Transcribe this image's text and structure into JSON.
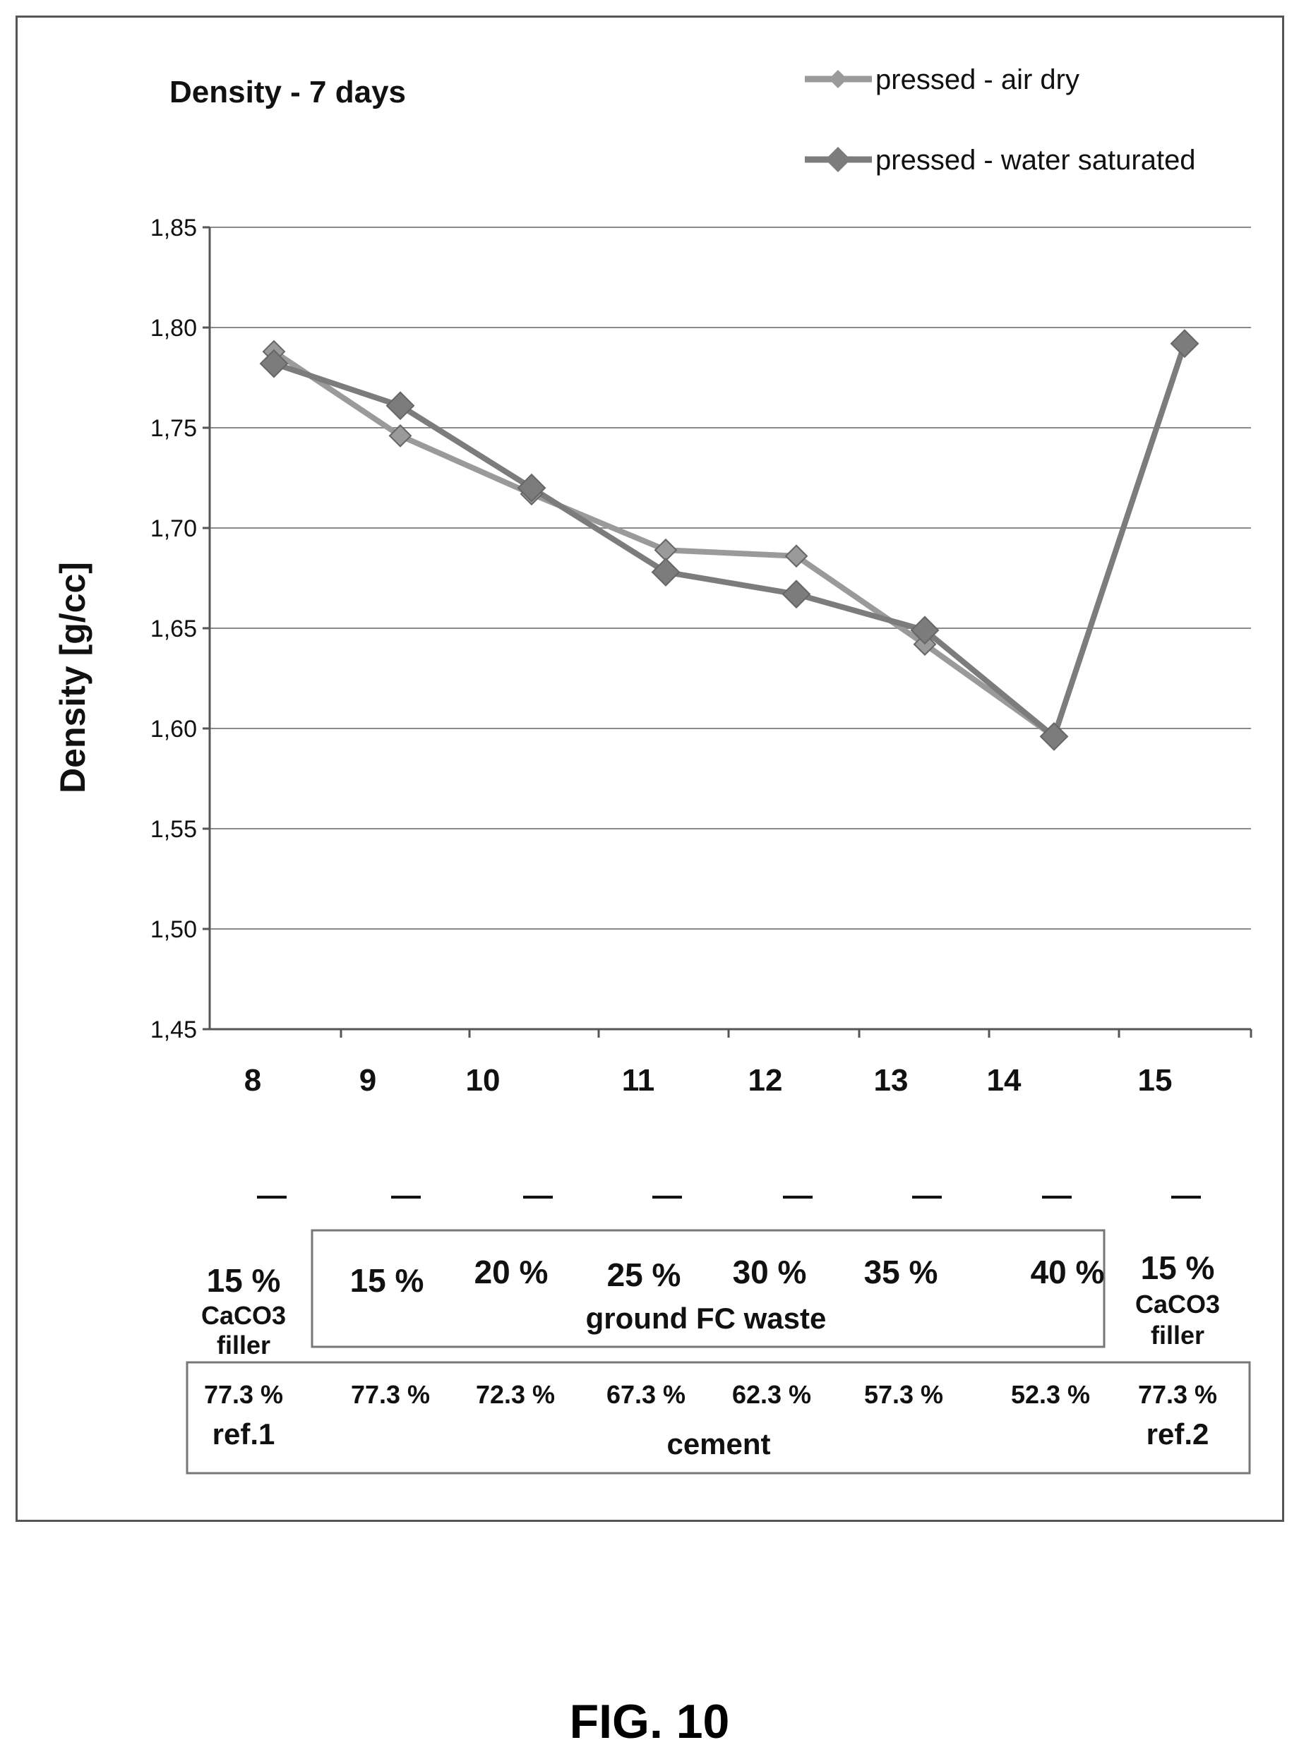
{
  "figure_caption": "FIG. 10",
  "chart_data": {
    "type": "line",
    "title": "Density - 7 days",
    "xlabel": "",
    "ylabel": "Density  [g/cc]",
    "ylim": [
      1.45,
      1.85
    ],
    "yticks": [
      "1,85",
      "1,80",
      "1,75",
      "1,70",
      "1,65",
      "1,60",
      "1,55",
      "1,50",
      "1,45"
    ],
    "ytick_values": [
      1.85,
      1.8,
      1.75,
      1.7,
      1.65,
      1.6,
      1.55,
      1.5,
      1.45
    ],
    "categories": [
      "8",
      "9",
      "10",
      "11",
      "12",
      "13",
      "14",
      "15"
    ],
    "grid": "horizontal",
    "legend_position": "top-right",
    "series": [
      {
        "name": "pressed - air dry",
        "color": "#9a9a9a",
        "marker": "diamond-small",
        "values": [
          1.788,
          1.746,
          1.717,
          1.689,
          1.686,
          1.642,
          1.596,
          1.792
        ]
      },
      {
        "name": "pressed - water saturated",
        "color": "#7c7c7c",
        "marker": "diamond",
        "values": [
          1.782,
          1.761,
          1.72,
          1.678,
          1.667,
          1.649,
          1.596,
          1.792
        ]
      }
    ],
    "dashes": [
      "—",
      "—",
      "—",
      "—",
      "—",
      "—",
      "—",
      "—"
    ],
    "table": {
      "ref1_pct": "15 %",
      "ref1_filler_line1": "CaCO3",
      "ref1_filler_line2": "filler",
      "fc_waste_pcts": [
        "15 %",
        "20 %",
        "25 %",
        "30 %",
        "35 %",
        "40 %"
      ],
      "fc_waste_label": "ground FC waste",
      "ref2_pct": "15 %",
      "ref2_filler_line1": "CaCO3",
      "ref2_filler_line2": "filler",
      "cement_pcts": [
        "77.3 %",
        "77.3 %",
        "72.3 %",
        "67.3 %",
        "62.3 %",
        "57.3 %",
        "52.3 %",
        "77.3 %"
      ],
      "ref1_label": "ref.1",
      "ref2_label": "ref.2",
      "cement_label": "cement"
    }
  }
}
